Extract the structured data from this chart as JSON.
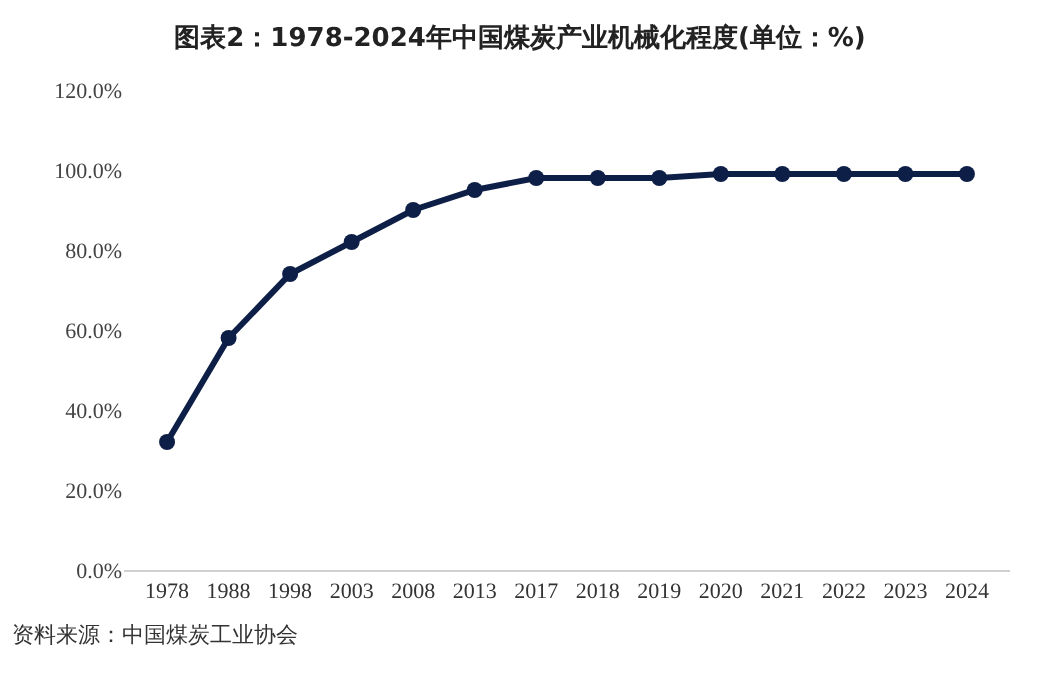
{
  "chart_data": {
    "type": "line",
    "title": "图表2：1978-2024年中国煤炭产业机械化程度(单位：%)",
    "categories": [
      "1978",
      "1988",
      "1998",
      "2003",
      "2008",
      "2013",
      "2017",
      "2018",
      "2019",
      "2020",
      "2021",
      "2022",
      "2023",
      "2024"
    ],
    "series": [
      {
        "color": "#0e1f47",
        "values": [
          32,
          58,
          74,
          82,
          90,
          95,
          98,
          98,
          98,
          99,
          99,
          99,
          99,
          99
        ]
      }
    ],
    "ylim": [
      0,
      120
    ],
    "yticks": [
      {
        "value": 0,
        "label": "0.0%"
      },
      {
        "value": 20,
        "label": "20.0%"
      },
      {
        "value": 40,
        "label": "40.0%"
      },
      {
        "value": 60,
        "label": "60.0%"
      },
      {
        "value": 80,
        "label": "80.0%"
      },
      {
        "value": 100,
        "label": "100.0%"
      },
      {
        "value": 120,
        "label": "120.0%"
      }
    ],
    "marker": "circle",
    "line_style": "solid",
    "annotations": [
      "资料来源：中国煤炭工业协会"
    ]
  }
}
